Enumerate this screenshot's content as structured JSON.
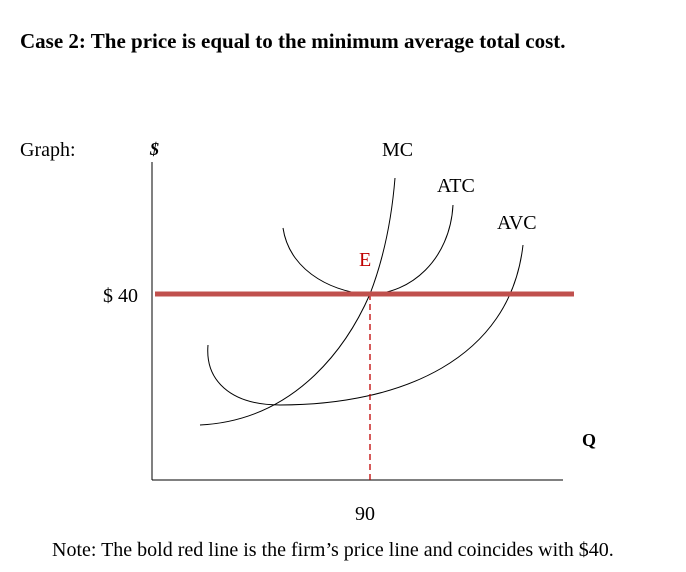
{
  "title": "Case 2:  The price is equal to the minimum average total cost.",
  "graph_label": "Graph:",
  "y_axis_label": "$",
  "x_axis_label": "Q",
  "curves": {
    "mc": "MC",
    "atc": "ATC",
    "avc": "AVC"
  },
  "equilibrium_label": "E",
  "price_label": "$ 40",
  "quantity_label": "90",
  "note": "Note: The bold red line is the firm’s price line and coincides with $40."
}
